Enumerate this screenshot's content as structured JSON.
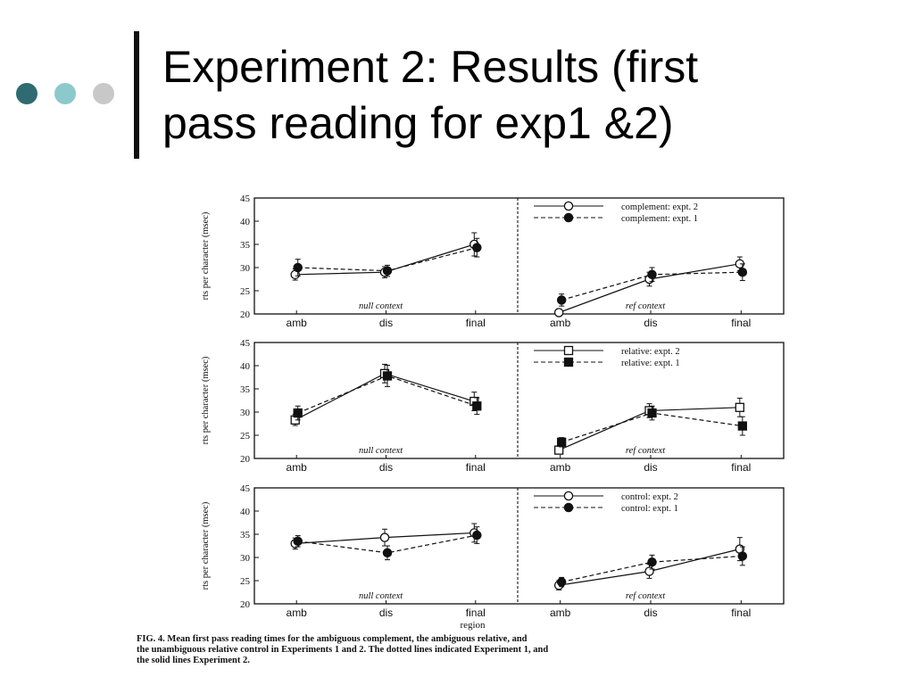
{
  "slide": {
    "title_line1": "Experiment 2: Results (first",
    "title_line2": "pass reading for exp1 &2)",
    "dot_colors": [
      "#2f6b70",
      "#8cc9cc",
      "#c8c8c8"
    ]
  },
  "caption": {
    "line1": "FIG. 4.  Mean first pass reading times for the ambiguous complement, the ambiguous relative, and",
    "line2": "the unambiguous relative control in Experiments 1 and 2. The dotted lines indicated Experiment 1, and",
    "line3": "the solid lines Experiment 2."
  },
  "chart_data": {
    "type": "line",
    "categories": [
      "amb",
      "dis",
      "final"
    ],
    "xlabel": "region",
    "ylabel": "rts per character (msec)",
    "ylim": [
      20,
      45
    ],
    "yticks": [
      20,
      25,
      30,
      35,
      40,
      45
    ],
    "grid": false,
    "rows": [
      {
        "legend_position": "top-right",
        "panels": [
          {
            "context": "null context",
            "series": [
              {
                "name": "complement: expt. 2",
                "marker": "open-circle",
                "style": "solid",
                "values": [
                  28.5,
                  29,
                  35
                ],
                "errors": [
                  1.2,
                  1.2,
                  2.5
                ]
              },
              {
                "name": "complement: expt. 1",
                "marker": "filled-circle",
                "style": "dashed",
                "values": [
                  30,
                  29.3,
                  34.3
                ],
                "errors": [
                  1.8,
                  1.2,
                  2.0
                ]
              }
            ]
          },
          {
            "context": "ref context",
            "series": [
              {
                "name": "complement: expt. 2",
                "marker": "open-circle",
                "style": "solid",
                "values": [
                  20.3,
                  27.5,
                  30.8
                ],
                "errors": [
                  0.8,
                  1.5,
                  1.5
                ]
              },
              {
                "name": "complement: expt. 1",
                "marker": "filled-circle",
                "style": "dashed",
                "values": [
                  23,
                  28.5,
                  29
                ],
                "errors": [
                  1.3,
                  1.5,
                  1.8
                ]
              }
            ]
          }
        ]
      },
      {
        "legend_position": "top-right",
        "panels": [
          {
            "context": "null context",
            "series": [
              {
                "name": "relative: expt. 2",
                "marker": "open-square",
                "style": "solid",
                "values": [
                  28.3,
                  38.3,
                  32.3
                ],
                "errors": [
                  1.2,
                  2.0,
                  2.0
                ]
              },
              {
                "name": "relative: expt. 1",
                "marker": "filled-square",
                "style": "dashed",
                "values": [
                  29.8,
                  37.8,
                  31.3
                ],
                "errors": [
                  1.5,
                  2.3,
                  1.8
                ]
              }
            ]
          },
          {
            "context": "ref context",
            "series": [
              {
                "name": "relative: expt. 2",
                "marker": "open-square",
                "style": "solid",
                "values": [
                  21.8,
                  30.3,
                  31
                ],
                "errors": [
                  0.8,
                  1.5,
                  2.0
                ]
              },
              {
                "name": "relative: expt. 1",
                "marker": "filled-square",
                "style": "dashed",
                "values": [
                  23.5,
                  29.8,
                  27
                ],
                "errors": [
                  1.0,
                  1.5,
                  2.0
                ]
              }
            ]
          }
        ]
      },
      {
        "legend_position": "top-right",
        "panels": [
          {
            "context": "null context",
            "series": [
              {
                "name": "control: expt. 2",
                "marker": "open-circle",
                "style": "solid",
                "values": [
                  33,
                  34.3,
                  35.3
                ],
                "errors": [
                  1.2,
                  1.8,
                  2.0
                ]
              },
              {
                "name": "control: expt. 1",
                "marker": "filled-circle",
                "style": "dashed",
                "values": [
                  33.5,
                  31,
                  34.8
                ],
                "errors": [
                  1.2,
                  1.5,
                  1.8
                ]
              }
            ]
          },
          {
            "context": "ref context",
            "series": [
              {
                "name": "control: expt. 2",
                "marker": "open-circle",
                "style": "solid",
                "values": [
                  24,
                  27,
                  31.8
                ],
                "errors": [
                  1.0,
                  1.5,
                  2.5
                ]
              },
              {
                "name": "control: expt. 1",
                "marker": "filled-circle",
                "style": "dashed",
                "values": [
                  24.7,
                  29,
                  30.3
                ],
                "errors": [
                  1.0,
                  1.5,
                  2.0
                ]
              }
            ]
          }
        ]
      }
    ]
  }
}
